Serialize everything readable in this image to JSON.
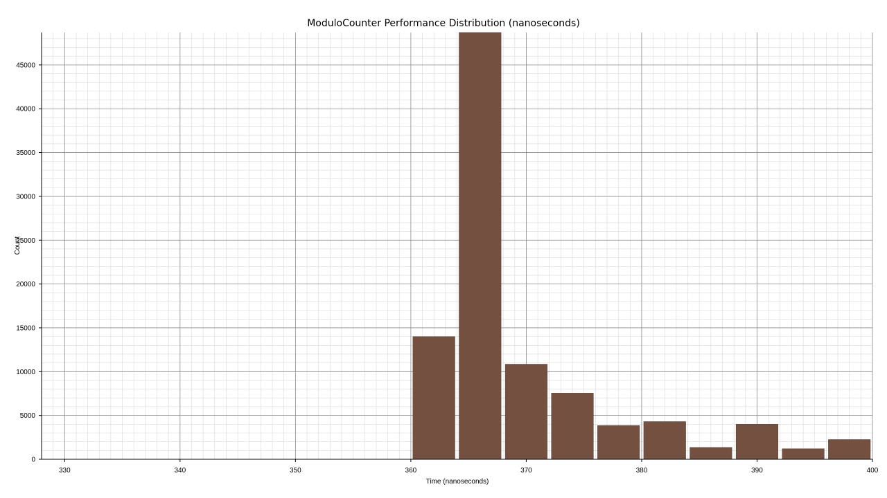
{
  "chart_data": {
    "type": "bar",
    "title": "ModuloCounter  Performance Distribution (nanoseconds)",
    "xlabel": "Time (nanoseconds)",
    "ylabel": "Count",
    "xlim": [
      328,
      400
    ],
    "ylim": [
      0,
      48700
    ],
    "xticks": [
      330,
      340,
      350,
      360,
      370,
      380,
      390,
      400
    ],
    "yticks": [
      0,
      5000,
      10000,
      15000,
      20000,
      25000,
      30000,
      35000,
      40000,
      45000
    ],
    "bin_width": 4,
    "bars": [
      {
        "x0": 360,
        "x1": 364,
        "value": 14000
      },
      {
        "x0": 364,
        "x1": 368,
        "value": 48700
      },
      {
        "x0": 368,
        "x1": 372,
        "value": 10850
      },
      {
        "x0": 372,
        "x1": 376,
        "value": 7550
      },
      {
        "x0": 376,
        "x1": 380,
        "value": 3850
      },
      {
        "x0": 380,
        "x1": 384,
        "value": 4300
      },
      {
        "x0": 384,
        "x1": 388,
        "value": 1350
      },
      {
        "x0": 388,
        "x1": 392,
        "value": 4000
      },
      {
        "x0": 392,
        "x1": 396,
        "value": 1200
      },
      {
        "x0": 396,
        "x1": 400,
        "value": 2250
      }
    ],
    "grid": true,
    "minor_grid": true,
    "colors": {
      "bar": "#735040",
      "bar_edge": "#5a3d30",
      "major_grid": "#8c8c8c",
      "minor_grid": "#d9d9d9",
      "axis": "#000000"
    }
  }
}
